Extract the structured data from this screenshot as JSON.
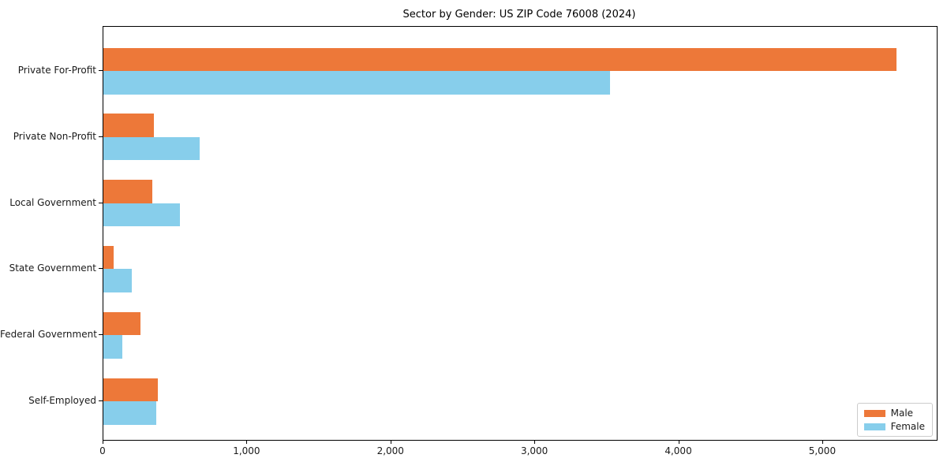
{
  "chart_data": {
    "type": "bar",
    "orientation": "horizontal",
    "title": "Sector by Gender: US ZIP Code 76008 (2024)",
    "categories": [
      "Private For-Profit",
      "Private Non-Profit",
      "Local Government",
      "State Government",
      "Federal Government",
      "Self-Employed"
    ],
    "series": [
      {
        "name": "Male",
        "color": "#ED7839",
        "values": [
          5510,
          350,
          340,
          70,
          260,
          380
        ]
      },
      {
        "name": "Female",
        "color": "#87CEEB",
        "values": [
          3520,
          670,
          530,
          200,
          130,
          370
        ]
      }
    ],
    "xlabel": "",
    "ylabel": "",
    "xlim": [
      0,
      5790
    ],
    "xticks": {
      "values": [
        0,
        1000,
        2000,
        3000,
        4000,
        5000
      ],
      "labels": [
        "0",
        "1,000",
        "2,000",
        "3,000",
        "4,000",
        "5,000"
      ]
    },
    "grid": false,
    "legend": {
      "position": "lower right",
      "entries": [
        "Male",
        "Female"
      ]
    },
    "frame_color": "#000000",
    "background_color": "#ffffff"
  }
}
